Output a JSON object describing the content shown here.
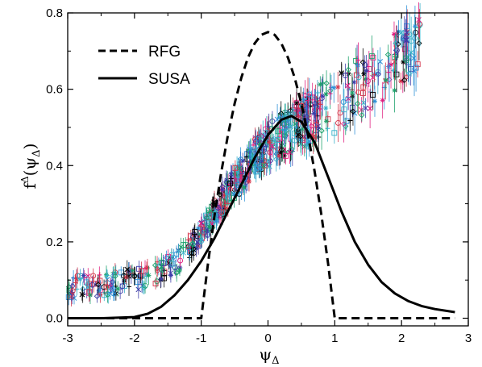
{
  "chart_data": {
    "type": "scatter",
    "title": "",
    "xlabel": "ψ",
    "xlabel_sub": "Δ",
    "ylabel": "f",
    "ylabel_sup": "Δ",
    "ylabel_arg_open": "(ψ",
    "ylabel_arg_sub": "Δ",
    "ylabel_arg_close": ")",
    "xlim": [
      -3,
      3
    ],
    "ylim": [
      -0.02,
      0.8
    ],
    "xticks": [
      "-3",
      "-2",
      "-1",
      "0",
      "1",
      "2",
      "3"
    ],
    "yticks": [
      "0.0",
      "0.2",
      "0.4",
      "0.6",
      "0.8"
    ],
    "grid": false,
    "legend_position": "top-left",
    "series": [
      {
        "name": "RFG",
        "style": "dashed-line",
        "color": "#000000",
        "x": [
          -3.0,
          -1.0,
          -0.9,
          -0.8,
          -0.7,
          -0.6,
          -0.5,
          -0.4,
          -0.3,
          -0.2,
          -0.1,
          0.0,
          0.1,
          0.2,
          0.3,
          0.4,
          0.5,
          0.6,
          0.7,
          0.8,
          0.9,
          1.0,
          2.8
        ],
        "y": [
          0.0,
          0.0,
          0.1425,
          0.27,
          0.3825,
          0.48,
          0.5625,
          0.63,
          0.6825,
          0.72,
          0.7425,
          0.75,
          0.7425,
          0.72,
          0.6825,
          0.63,
          0.5625,
          0.48,
          0.3825,
          0.27,
          0.1425,
          0.0,
          0.0
        ]
      },
      {
        "name": "SUSA",
        "style": "solid-line",
        "color": "#000000",
        "x": [
          -3.0,
          -2.5,
          -2.0,
          -1.8,
          -1.6,
          -1.4,
          -1.2,
          -1.0,
          -0.8,
          -0.6,
          -0.4,
          -0.2,
          0.0,
          0.2,
          0.35,
          0.5,
          0.7,
          0.9,
          1.1,
          1.3,
          1.5,
          1.7,
          1.9,
          2.1,
          2.3,
          2.5,
          2.8
        ],
        "y": [
          0.0,
          0.0,
          0.003,
          0.012,
          0.03,
          0.06,
          0.1,
          0.15,
          0.21,
          0.28,
          0.35,
          0.42,
          0.48,
          0.52,
          0.53,
          0.515,
          0.46,
          0.37,
          0.28,
          0.2,
          0.14,
          0.095,
          0.065,
          0.045,
          0.032,
          0.024,
          0.016
        ]
      }
    ],
    "scatter_trend": {
      "note": "",
      "x": [
        -3.0,
        -2.6,
        -2.2,
        -1.8,
        -1.4,
        -1.0,
        -0.6,
        -0.2,
        0.2,
        0.6,
        1.0,
        1.4,
        1.8,
        2.2
      ],
      "y": [
        0.08,
        0.085,
        0.095,
        0.11,
        0.14,
        0.22,
        0.33,
        0.42,
        0.48,
        0.52,
        0.56,
        0.61,
        0.66,
        0.72
      ],
      "colors": [
        "#000000",
        "#e0197d",
        "#2a8fd6",
        "#1aa06a",
        "#3b3ba8",
        "#d4344a",
        "#36b0c9"
      ],
      "markers": [
        "square",
        "star",
        "cross",
        "plus",
        "circle",
        "diamond"
      ]
    }
  }
}
